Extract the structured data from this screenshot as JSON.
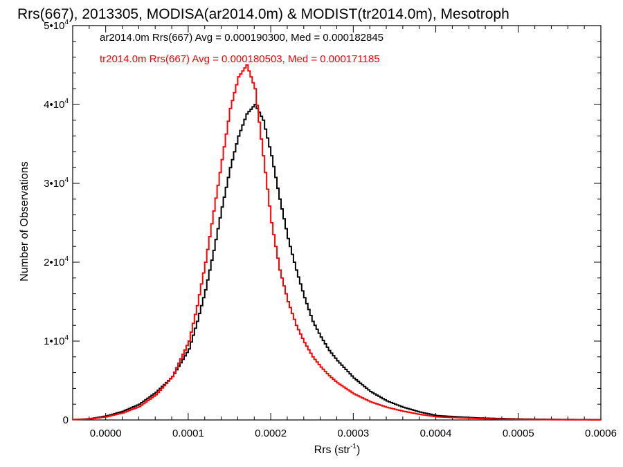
{
  "chart_data": {
    "type": "line",
    "step": true,
    "title": "Rrs(667), 2013305, MODISA(ar2014.0m) & MODIST(tr2014.0m), Mesotroph",
    "xlabel": {
      "base": "Rrs (str",
      "sup": "-1",
      "tail": ")"
    },
    "ylabel": "Number of Observations",
    "xlim": [
      -4e-05,
      0.0006
    ],
    "ylim": [
      0,
      50000
    ],
    "x_ticks": [
      {
        "value": 0.0,
        "label": "0.0000"
      },
      {
        "value": 0.0001,
        "label": "0.0001"
      },
      {
        "value": 0.0002,
        "label": "0.0002"
      },
      {
        "value": 0.0003,
        "label": "0.0003"
      },
      {
        "value": 0.0004,
        "label": "0.0004"
      },
      {
        "value": 0.0005,
        "label": "0.0005"
      },
      {
        "value": 0.0006,
        "label": "0.0006"
      }
    ],
    "y_ticks": [
      {
        "value": 0,
        "label": "0",
        "exp": ""
      },
      {
        "value": 10000,
        "label": "1•10",
        "exp": "4"
      },
      {
        "value": 20000,
        "label": "2•10",
        "exp": "4"
      },
      {
        "value": 30000,
        "label": "3•10",
        "exp": "4"
      },
      {
        "value": 40000,
        "label": "4•10",
        "exp": "4"
      },
      {
        "value": 50000,
        "label": "5•10",
        "exp": "4"
      }
    ],
    "series": [
      {
        "color": "#000000",
        "x": [
          -4e-05,
          -2e-05,
          0.0,
          2e-05,
          4e-05,
          6e-05,
          8e-05,
          0.0001,
          0.00011,
          0.00012,
          0.00013,
          0.00014,
          0.00015,
          0.00016,
          0.00017,
          0.00018,
          0.00019,
          0.0002,
          0.00021,
          0.00022,
          0.00023,
          0.00024,
          0.00025,
          0.00026,
          0.00027,
          0.00028,
          0.0003,
          0.00032,
          0.00034,
          0.00036,
          0.00038,
          0.0004,
          0.00045,
          0.0005,
          0.00055,
          0.0006
        ],
        "y": [
          50,
          150,
          500,
          1100,
          2000,
          3500,
          5500,
          9000,
          12500,
          16500,
          21500,
          27000,
          32000,
          36000,
          38800,
          40000,
          38000,
          33500,
          28000,
          23000,
          19000,
          15500,
          12500,
          10500,
          8800,
          7500,
          5300,
          3600,
          2400,
          1600,
          1000,
          550,
          250,
          120,
          60,
          30
        ]
      },
      {
        "color": "#ff0000",
        "x": [
          -4e-05,
          -2e-05,
          0.0,
          2e-05,
          4e-05,
          6e-05,
          8e-05,
          0.0001,
          0.00011,
          0.00012,
          0.00013,
          0.00014,
          0.00015,
          0.00016,
          0.00017,
          0.00018,
          0.00019,
          0.0002,
          0.00021,
          0.00022,
          0.00023,
          0.00024,
          0.00025,
          0.00026,
          0.00027,
          0.00028,
          0.0003,
          0.00032,
          0.00034,
          0.00036,
          0.00038,
          0.0004,
          0.00045,
          0.0005,
          0.00055,
          0.0006
        ],
        "y": [
          40,
          120,
          400,
          900,
          1700,
          3200,
          5500,
          10000,
          14500,
          20000,
          26500,
          33000,
          39500,
          43500,
          45000,
          42000,
          33500,
          25000,
          19000,
          15000,
          12000,
          9800,
          8000,
          6700,
          5600,
          4700,
          3300,
          2300,
          1600,
          1100,
          700,
          400,
          170,
          70,
          30,
          10
        ]
      }
    ],
    "annotations": [
      {
        "text": "ar2014.0m Rrs(667) Avg = 0.000190300, Med = 0.000182845",
        "color": "#000000"
      },
      {
        "text": "tr2014.0m Rrs(667) Avg = 0.000180503, Med = 0.000171185",
        "color": "#ff0000"
      }
    ]
  }
}
